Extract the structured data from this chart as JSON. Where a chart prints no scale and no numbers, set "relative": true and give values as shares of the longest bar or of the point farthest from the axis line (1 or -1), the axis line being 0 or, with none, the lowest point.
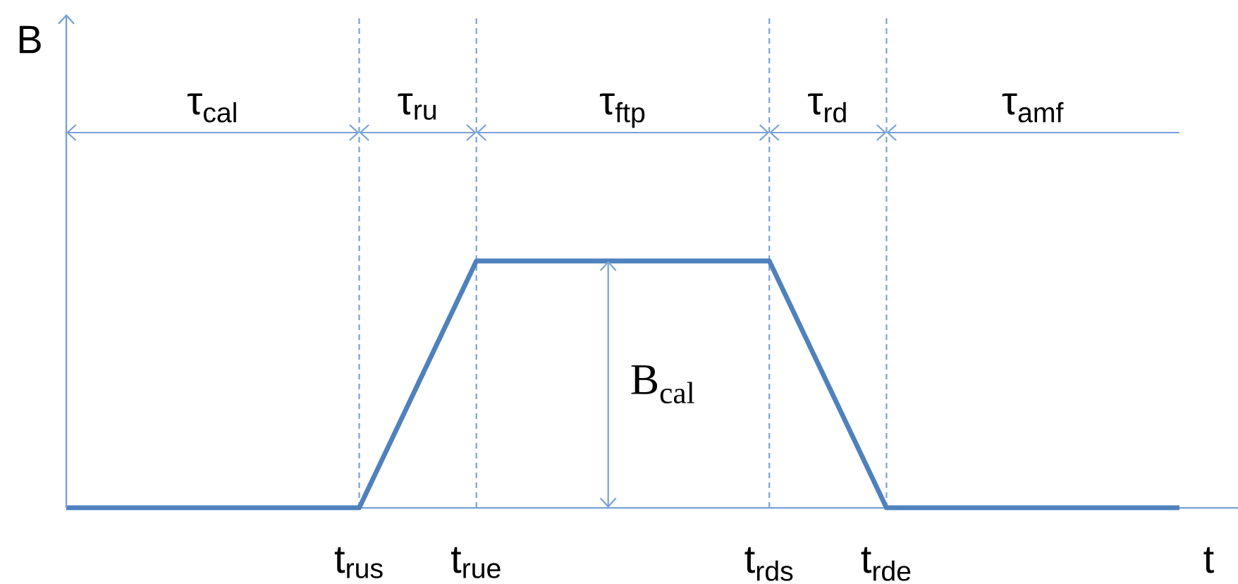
{
  "chart_data": {
    "type": "line",
    "relative": true,
    "xlabel": "t",
    "categories": [
      null,
      null,
      null,
      null,
      null,
      "t$_{rus}$",
      null,
      "t$_{rue}$",
      null,
      null,
      null,
      null,
      "t$_{rds}$",
      null,
      "t$_{rde}$",
      null,
      null,
      null,
      null,
      null
    ],
    "values": [
      0,
      0,
      0,
      0,
      0,
      0,
      0.5,
      1,
      1,
      1,
      1,
      1,
      1,
      0.5,
      0,
      0,
      0,
      0,
      0,
      0
    ],
    "color": "#4f81bd",
    "grid": "x",
    "annotations": [
      "B",
      "τ$_{cal}$",
      "τ$_{ru}$",
      "τ$_{ftp}$",
      "τ$_{rd}$",
      "τ$_{amf}$",
      {
        "text": "B$_{cal}$",
        "y": 1
      }
    ]
  }
}
